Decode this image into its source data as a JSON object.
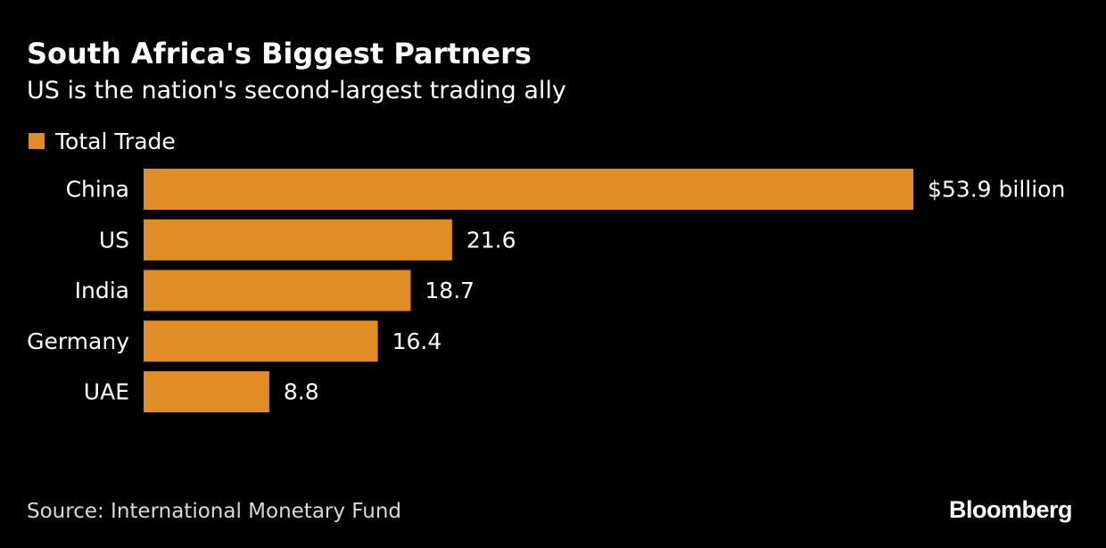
{
  "header": {
    "title": "South Africa's Biggest Partners",
    "subtitle": "US is the nation's second-largest trading ally"
  },
  "legend": {
    "label": "Total Trade"
  },
  "footer": {
    "source": "Source: International Monetary Fund",
    "brand": "Bloomberg"
  },
  "colors": {
    "background": "#000000",
    "bar": "#e08d26"
  },
  "chart_data": {
    "type": "bar",
    "orientation": "horizontal",
    "title": "South Africa's Biggest Partners",
    "subtitle": "US is the nation's second-largest trading ally",
    "categories": [
      "China",
      "US",
      "India",
      "Germany",
      "UAE"
    ],
    "series": [
      {
        "name": "Total Trade",
        "values": [
          53.9,
          21.6,
          18.7,
          16.4,
          8.8
        ],
        "value_labels": [
          "$53.9 billion",
          "21.6",
          "18.7",
          "16.4",
          "8.8"
        ]
      }
    ],
    "xlim": [
      0,
      53.9
    ],
    "grid": false,
    "legend_position": "top-left"
  }
}
